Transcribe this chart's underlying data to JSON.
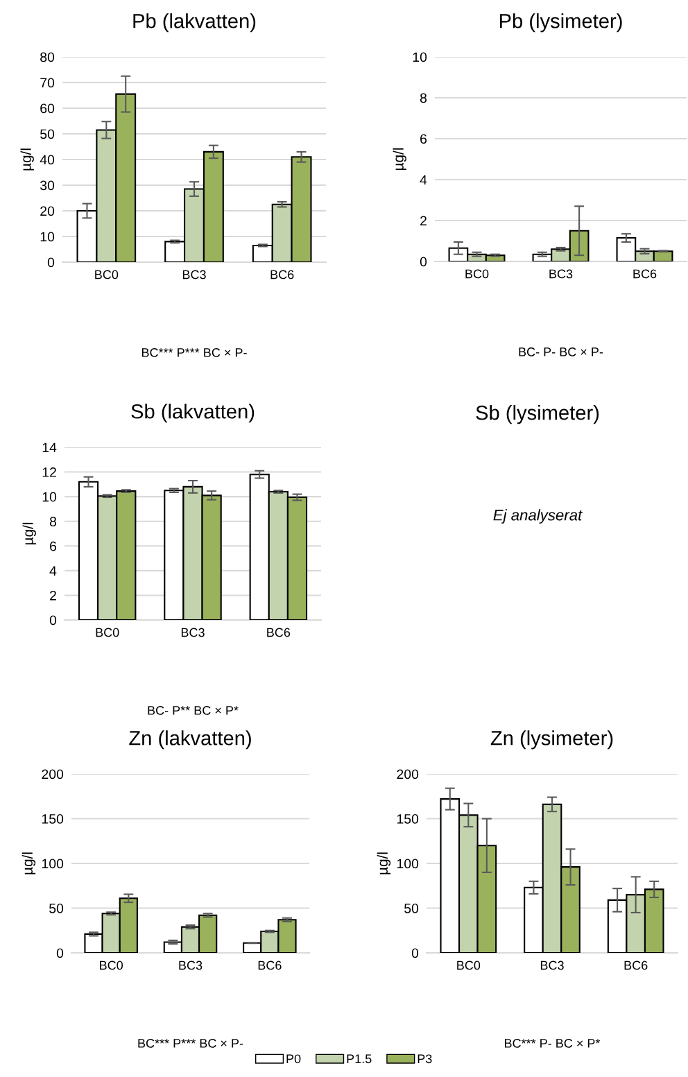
{
  "chart_data": [
    {
      "type": "bar",
      "title": "Pb (lakvatten)",
      "ylabel": "µg/l",
      "categories": [
        "BC0",
        "BC3",
        "BC6"
      ],
      "ylim": [
        0,
        80
      ],
      "yticks": [
        0,
        10,
        20,
        30,
        40,
        50,
        60,
        70,
        80
      ],
      "grid": "y",
      "annotations": [
        "BC*** P*** BC × P-"
      ],
      "series": [
        {
          "color": "#ffffff",
          "values": [
            20,
            8,
            6.5
          ],
          "errors": [
            2.8,
            0.5,
            0.4
          ]
        },
        {
          "color": "#c3d3ad",
          "values": [
            51.5,
            28.5,
            22.5
          ],
          "errors": [
            3.3,
            2.8,
            1
          ]
        },
        {
          "color": "#9bb25d",
          "values": [
            65.5,
            43,
            41
          ],
          "errors": [
            7,
            2.5,
            2
          ]
        }
      ]
    },
    {
      "type": "bar",
      "title": "Pb (lysimeter)",
      "ylabel": "µg/l",
      "categories": [
        "BC0",
        "BC3",
        "BC6"
      ],
      "ylim": [
        0,
        10
      ],
      "yticks": [
        0,
        2,
        4,
        6,
        8,
        10
      ],
      "grid": "y",
      "annotations": [
        "BC- P- BC × P-"
      ],
      "series": [
        {
          "color": "#ffffff",
          "values": [
            0.65,
            0.35,
            1.15
          ],
          "errors": [
            0.3,
            0.1,
            0.2
          ]
        },
        {
          "color": "#c3d3ad",
          "values": [
            0.35,
            0.6,
            0.5
          ],
          "errors": [
            0.1,
            0.08,
            0.12
          ]
        },
        {
          "color": "#9bb25d",
          "values": [
            0.3,
            1.5,
            0.5
          ],
          "errors": [
            0.05,
            1.2,
            0.03
          ]
        }
      ]
    },
    {
      "type": "bar",
      "title": "Sb (lakvatten)",
      "ylabel": "µg/l",
      "categories": [
        "BC0",
        "BC3",
        "BC6"
      ],
      "ylim": [
        0,
        14
      ],
      "yticks": [
        0,
        2,
        4,
        6,
        8,
        10,
        12,
        14
      ],
      "grid": "y",
      "annotations": [
        "BC- P** BC × P*"
      ],
      "series": [
        {
          "color": "#ffffff",
          "values": [
            11.2,
            10.5,
            11.8
          ],
          "errors": [
            0.4,
            0.15,
            0.3
          ]
        },
        {
          "color": "#c3d3ad",
          "values": [
            10.05,
            10.8,
            10.4
          ],
          "errors": [
            0.1,
            0.5,
            0.1
          ]
        },
        {
          "color": "#9bb25d",
          "values": [
            10.45,
            10.1,
            9.95
          ],
          "errors": [
            0.1,
            0.35,
            0.25
          ]
        }
      ]
    },
    {
      "type": "other",
      "title": "Sb (lysimeter)",
      "annotations": [
        "Ej analyserat"
      ]
    },
    {
      "type": "bar",
      "title": "Zn (lakvatten)",
      "ylabel": "µg/l",
      "categories": [
        "BC0",
        "BC3",
        "BC6"
      ],
      "ylim": [
        0,
        200
      ],
      "yticks": [
        0,
        50,
        100,
        150,
        200
      ],
      "grid": "y",
      "annotations": [
        "BC*** P*** BC × P-"
      ],
      "series": [
        {
          "color": "#ffffff",
          "values": [
            21,
            12,
            11
          ],
          "errors": [
            2,
            2,
            0.3
          ]
        },
        {
          "color": "#c3d3ad",
          "values": [
            44,
            29,
            24
          ],
          "errors": [
            1.5,
            2,
            1
          ]
        },
        {
          "color": "#9bb25d",
          "values": [
            61,
            42,
            37
          ],
          "errors": [
            4.5,
            2,
            2
          ]
        }
      ]
    },
    {
      "type": "bar",
      "title": "Zn (lysimeter)",
      "ylabel": "µg/l",
      "categories": [
        "BC0",
        "BC3",
        "BC6"
      ],
      "ylim": [
        0,
        200
      ],
      "yticks": [
        0,
        50,
        100,
        150,
        200
      ],
      "grid": "y",
      "annotations": [
        "BC*** P- BC × P*"
      ],
      "legend": "bottom",
      "series": [
        {
          "name": "P0",
          "color": "#ffffff",
          "values": [
            172,
            73,
            59
          ],
          "errors": [
            12,
            7,
            13
          ]
        },
        {
          "name": "P1.5",
          "color": "#c3d3ad",
          "values": [
            154,
            166,
            65
          ],
          "errors": [
            13,
            8,
            20
          ]
        },
        {
          "name": "P3",
          "color": "#9bb25d",
          "values": [
            120,
            96,
            71
          ],
          "errors": [
            30,
            20,
            9
          ]
        }
      ]
    }
  ]
}
